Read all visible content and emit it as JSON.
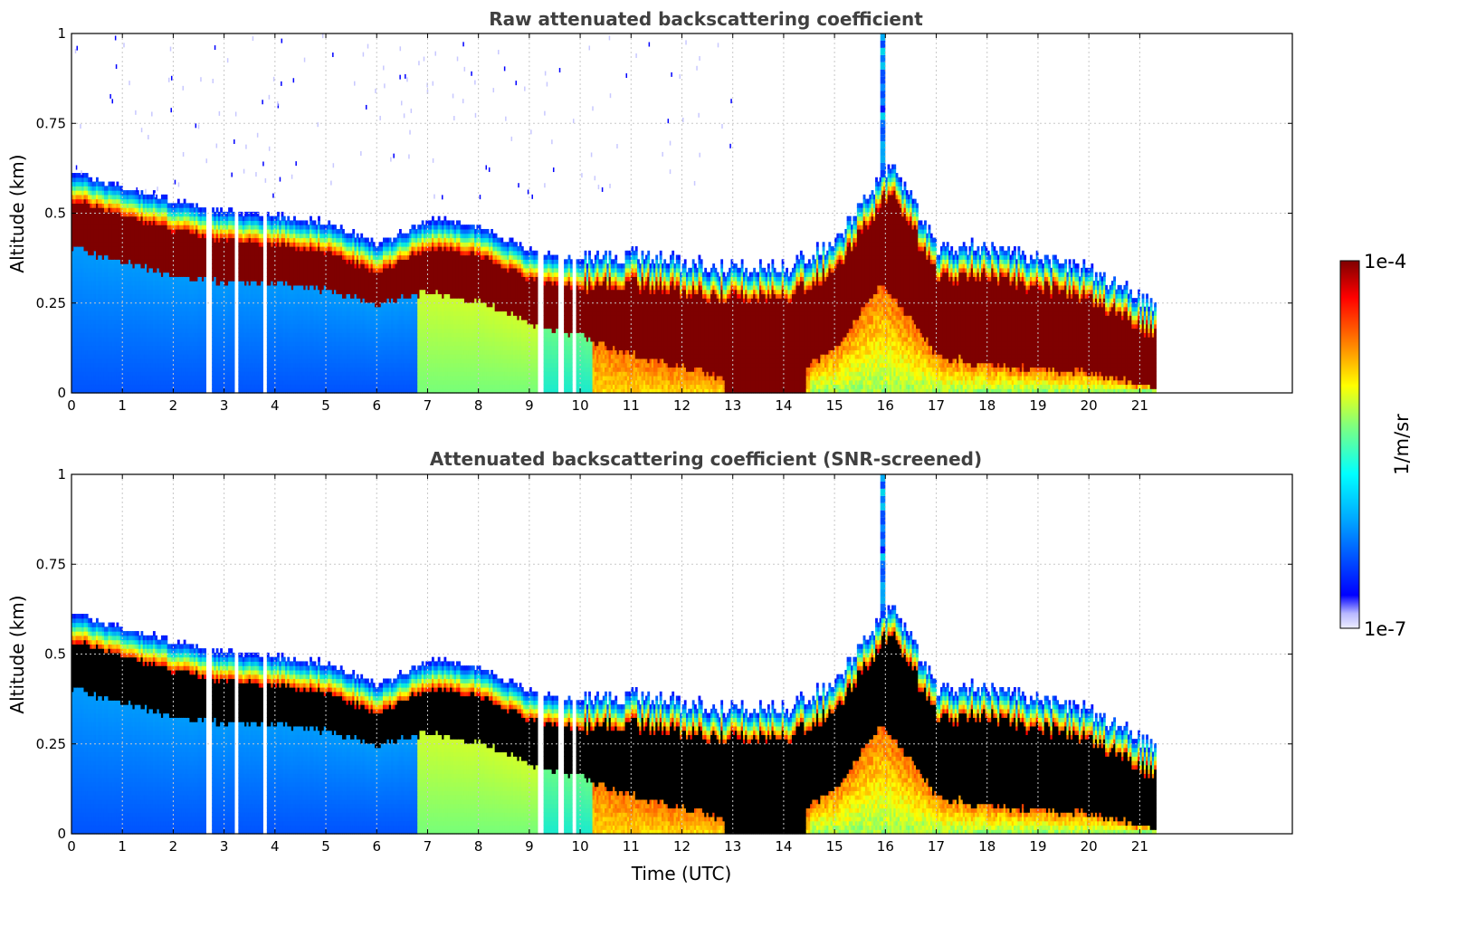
{
  "chart_data": [
    {
      "type": "heatmap",
      "title": "Raw attenuated backscattering coefficient",
      "xlabel": "",
      "ylabel": "Altitude (km)",
      "xlim": [
        0,
        24
      ],
      "ylim": [
        0,
        1
      ],
      "x_ticks": [
        "0",
        "1",
        "2",
        "3",
        "4",
        "5",
        "6",
        "7",
        "8",
        "9",
        "10",
        "11",
        "12",
        "13",
        "14",
        "15",
        "16",
        "17",
        "18",
        "19",
        "20",
        "21"
      ],
      "y_ticks": [
        "0",
        "0.25",
        "0.5",
        "0.75",
        "1"
      ],
      "grid": true,
      "variant": "raw",
      "data_end_hour": 21.3,
      "gaps_hours": [
        2.68,
        3.22,
        3.78,
        9.2,
        9.6,
        9.85
      ],
      "layer_top_km": [
        [
          0,
          0.57
        ],
        [
          1,
          0.53
        ],
        [
          2,
          0.49
        ],
        [
          3,
          0.46
        ],
        [
          4,
          0.45
        ],
        [
          5,
          0.43
        ],
        [
          6,
          0.37
        ],
        [
          7,
          0.44
        ],
        [
          8,
          0.42
        ],
        [
          9,
          0.35
        ],
        [
          10,
          0.33
        ],
        [
          11,
          0.34
        ],
        [
          12,
          0.32
        ],
        [
          13,
          0.3
        ],
        [
          14,
          0.3
        ],
        [
          15,
          0.38
        ],
        [
          15.9,
          0.56
        ],
        [
          16.1,
          0.6
        ],
        [
          17,
          0.36
        ],
        [
          18,
          0.36
        ],
        [
          19,
          0.33
        ],
        [
          20,
          0.3
        ],
        [
          21,
          0.22
        ],
        [
          21.3,
          0.2
        ]
      ],
      "layer_bottom_km": [
        [
          0,
          0.4
        ],
        [
          1,
          0.36
        ],
        [
          2,
          0.32
        ],
        [
          3,
          0.3
        ],
        [
          4,
          0.3
        ],
        [
          5,
          0.28
        ],
        [
          6,
          0.24
        ],
        [
          7,
          0.28
        ],
        [
          8,
          0.25
        ],
        [
          9,
          0.19
        ],
        [
          10,
          0.15
        ],
        [
          11,
          0.1
        ],
        [
          12,
          0.07
        ],
        [
          13,
          0.03
        ],
        [
          14,
          0.03
        ],
        [
          15,
          0.12
        ],
        [
          15.9,
          0.3
        ],
        [
          16.2,
          0.25
        ],
        [
          17,
          0.1
        ],
        [
          18,
          0.07
        ],
        [
          19,
          0.06
        ],
        [
          20,
          0.05
        ],
        [
          21,
          0.02
        ],
        [
          21.3,
          0.01
        ]
      ],
      "colorbar": {
        "min_label": "1e-7",
        "max_label": "1e-4",
        "unit": "1/m/sr",
        "scale": "log"
      }
    },
    {
      "type": "heatmap",
      "title": "Attenuated backscattering coefficient (SNR-screened)",
      "xlabel": "Time (UTC)",
      "ylabel": "Altitude (km)",
      "xlim": [
        0,
        24
      ],
      "ylim": [
        0,
        1
      ],
      "x_ticks": [
        "0",
        "1",
        "2",
        "3",
        "4",
        "5",
        "6",
        "7",
        "8",
        "9",
        "10",
        "11",
        "12",
        "13",
        "14",
        "15",
        "16",
        "17",
        "18",
        "19",
        "20",
        "21"
      ],
      "y_ticks": [
        "0",
        "0.25",
        "0.5",
        "0.75",
        "1"
      ],
      "grid": true,
      "variant": "screened",
      "data_end_hour": 21.3,
      "gaps_hours": [
        2.68,
        3.22,
        3.78,
        9.2,
        9.6,
        9.85
      ],
      "layer_top_km": [
        [
          0,
          0.57
        ],
        [
          1,
          0.53
        ],
        [
          2,
          0.49
        ],
        [
          3,
          0.46
        ],
        [
          4,
          0.45
        ],
        [
          5,
          0.43
        ],
        [
          6,
          0.37
        ],
        [
          7,
          0.44
        ],
        [
          8,
          0.42
        ],
        [
          9,
          0.35
        ],
        [
          10,
          0.33
        ],
        [
          11,
          0.34
        ],
        [
          12,
          0.32
        ],
        [
          13,
          0.3
        ],
        [
          14,
          0.3
        ],
        [
          15,
          0.38
        ],
        [
          15.9,
          0.56
        ],
        [
          16.1,
          0.6
        ],
        [
          17,
          0.36
        ],
        [
          18,
          0.36
        ],
        [
          19,
          0.33
        ],
        [
          20,
          0.3
        ],
        [
          21,
          0.22
        ],
        [
          21.3,
          0.2
        ]
      ],
      "layer_bottom_km": [
        [
          0,
          0.4
        ],
        [
          1,
          0.36
        ],
        [
          2,
          0.32
        ],
        [
          3,
          0.3
        ],
        [
          4,
          0.3
        ],
        [
          5,
          0.28
        ],
        [
          6,
          0.24
        ],
        [
          7,
          0.28
        ],
        [
          8,
          0.25
        ],
        [
          9,
          0.19
        ],
        [
          10,
          0.15
        ],
        [
          11,
          0.1
        ],
        [
          12,
          0.07
        ],
        [
          13,
          0.03
        ],
        [
          14,
          0.03
        ],
        [
          15,
          0.12
        ],
        [
          15.9,
          0.3
        ],
        [
          16.2,
          0.25
        ],
        [
          17,
          0.1
        ],
        [
          18,
          0.07
        ],
        [
          19,
          0.06
        ],
        [
          20,
          0.05
        ],
        [
          21,
          0.02
        ],
        [
          21.3,
          0.01
        ]
      ],
      "colorbar": {
        "min_label": "1e-7",
        "max_label": "1e-4",
        "unit": "1/m/sr",
        "scale": "log"
      }
    }
  ],
  "colors": {
    "grid": "#c8c8c8",
    "title": "#404040",
    "saturated_raw": "#7f0000",
    "saturated_screened": "#000000"
  }
}
